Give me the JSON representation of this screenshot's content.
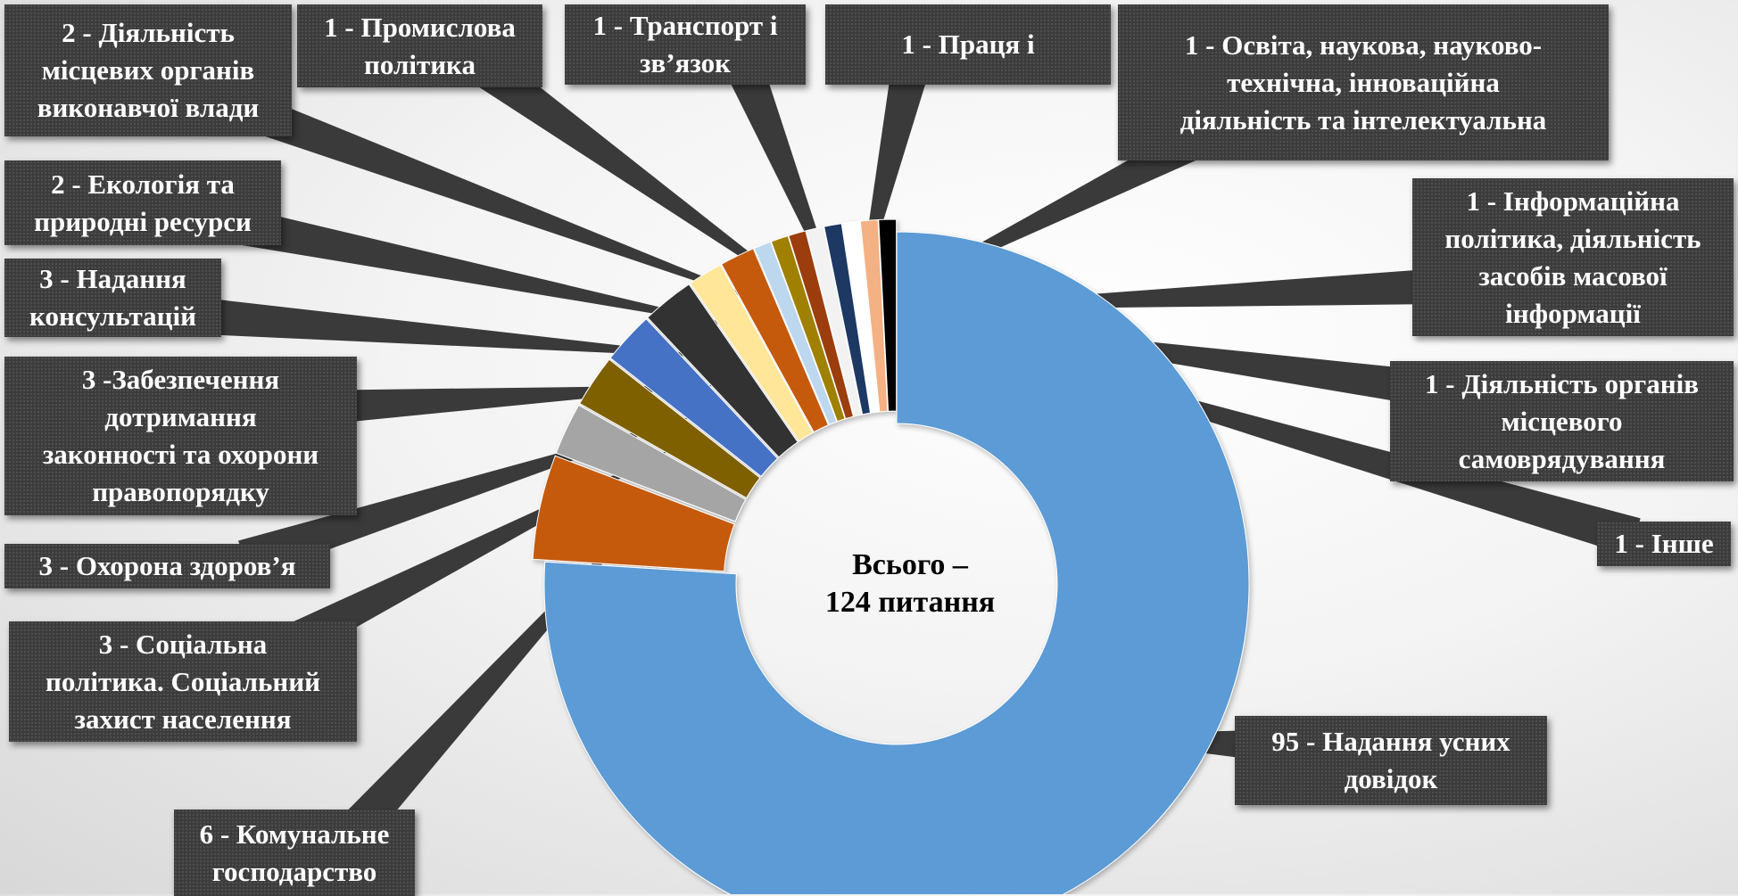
{
  "chart_data": {
    "type": "pie",
    "style": "donut",
    "center_label": "Всього –\n124 питання",
    "slices": [
      {
        "label": "95 - Надання  усних\nдовідок",
        "value": 95,
        "color": "#5b9bd5"
      },
      {
        "label": "6 - Комунальне\nгосподарство",
        "value": 6,
        "color": "#c55a11"
      },
      {
        "label": "3 - Соціальна\nполітика. Соціальний\nзахист населення",
        "value": 3,
        "color": "#a5a5a5"
      },
      {
        "label": "3 - Охорона здоров’я",
        "value": 3,
        "color": "#7f6000"
      },
      {
        "label": "3 -Забезпечення\nдотримання\nзаконності та охорони\nправопорядку",
        "value": 3,
        "color": "#4472c4"
      },
      {
        "label": "3 - Надання\nконсультацій",
        "value": 3,
        "color": "#333333"
      },
      {
        "label": "2 - Екологія та\nприродні ресурси",
        "value": 2,
        "color": "#ffe699"
      },
      {
        "label": "2 - Діяльність\nмісцевих органів\nвиконавчої влади",
        "value": 2,
        "color": "#c55a11"
      },
      {
        "label": "1 - Промислова\nполітика",
        "value": 1,
        "color": "#bdd7ee"
      },
      {
        "label": "1 - Транспорт і\nзв’язок",
        "value": 1,
        "color": "#a08000"
      },
      {
        "label": "1 - Праця і",
        "value": 1,
        "color": "#9c3d0a"
      },
      {
        "label": "1 - Освіта, наукова, науково-\nтехнічна, інноваційна\nдіяльність та інтелектуальна",
        "value": 1,
        "color": "#f2f2f2"
      },
      {
        "label": "1 - Інформаційна\nполітика, діяльність\nзасобів масової\nінформації",
        "value": 1,
        "color": "#1f3864"
      },
      {
        "label": "1 - Діяльність органів\nмісцевого\nсамоврядування",
        "value": 1,
        "color": "#ffffff"
      },
      {
        "label": "1 - Інше",
        "value": 1,
        "color": "#f4b183"
      },
      {
        "label": "",
        "value": 1,
        "color": "#000000"
      }
    ]
  }
}
